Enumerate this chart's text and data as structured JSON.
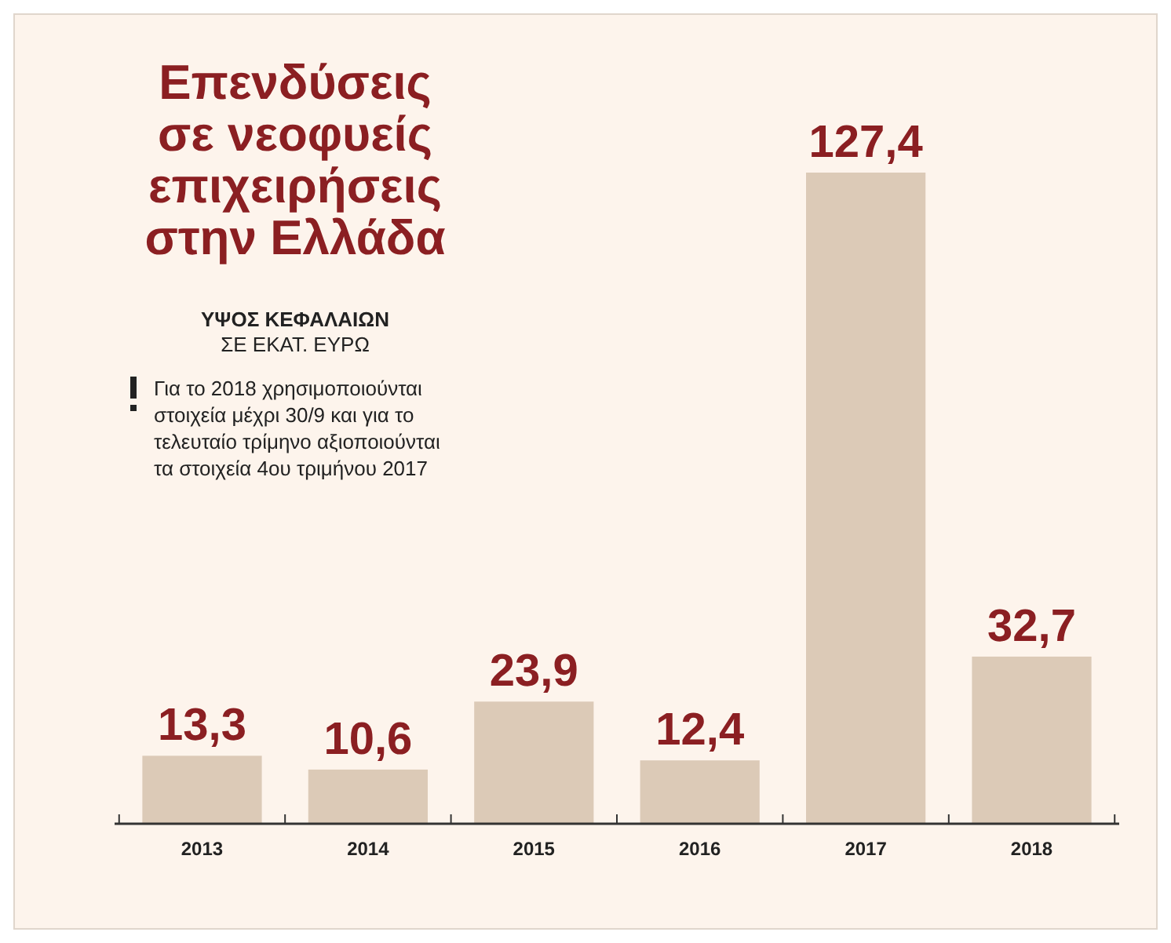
{
  "chart_data": {
    "type": "bar",
    "title": "Επενδύσεις σε νεοφυείς επιχειρήσεις στην Ελλάδα",
    "subtitle": "ΥΨΟΣ ΚΕΦΑΛΑΙΩΝ",
    "ylabel": "ΣΕ ΕΚΑΤ. ΕΥΡΩ",
    "annotations": [
      "Για το 2018 χρησιμοποιούνται στοιχεία μέχρι 30/9 και για το τελευταίο τρίμηνο αξιοποιούνται τα στοιχεία 4ου τριμήνου 2017"
    ],
    "categories": [
      "2013",
      "2014",
      "2015",
      "2016",
      "2017",
      "2018"
    ],
    "values": [
      13.3,
      10.6,
      23.9,
      12.4,
      127.4,
      32.7
    ],
    "value_labels": [
      "13,3",
      "10,6",
      "23,9",
      "12,4",
      "127,4",
      "32,7"
    ],
    "color": "#dccab7"
  }
}
